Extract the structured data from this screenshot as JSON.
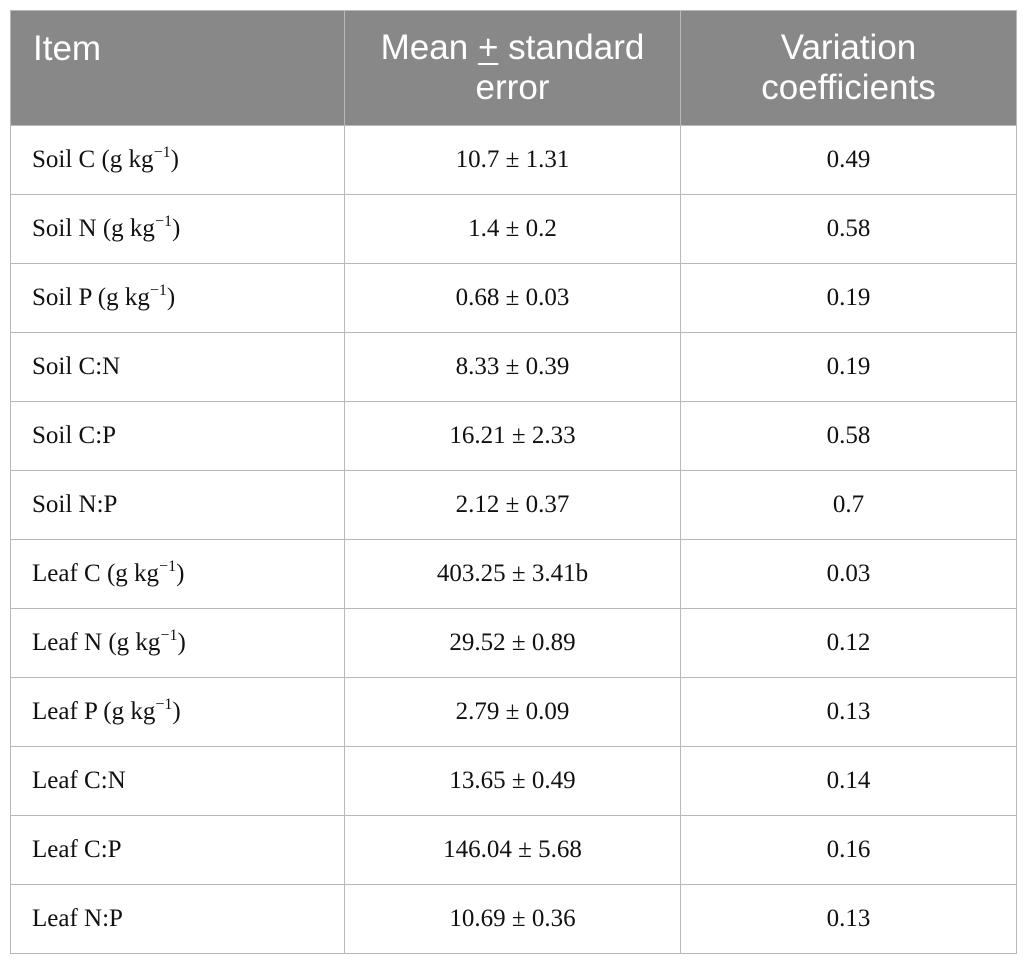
{
  "table": {
    "headers": {
      "item": "Item",
      "mean_line1_prefix": "Mean ",
      "mean_pm": "+",
      "mean_line1_suffix": " standard",
      "mean_line2": "error",
      "var_line1": "Variation",
      "var_line2": "coefficients"
    },
    "rows": [
      {
        "item": "Soil C",
        "unit_open": " (g kg",
        "unit_sup": "−1",
        "unit_close": ")",
        "mean": "10.7 ± 1.31",
        "cv": "0.49"
      },
      {
        "item": "Soil N",
        "unit_open": " (g kg",
        "unit_sup": "−1",
        "unit_close": ")",
        "mean": "1.4 ± 0.2",
        "cv": "0.58"
      },
      {
        "item": "Soil P",
        "unit_open": " (g kg",
        "unit_sup": "−1",
        "unit_close": ")",
        "mean": "0.68 ± 0.03",
        "cv": "0.19"
      },
      {
        "item": "Soil C:N",
        "unit_open": "",
        "unit_sup": "",
        "unit_close": "",
        "mean": "8.33 ± 0.39",
        "cv": "0.19"
      },
      {
        "item": "Soil C:P",
        "unit_open": "",
        "unit_sup": "",
        "unit_close": "",
        "mean": "16.21 ± 2.33",
        "cv": "0.58"
      },
      {
        "item": "Soil N:P",
        "unit_open": "",
        "unit_sup": "",
        "unit_close": "",
        "mean": "2.12 ± 0.37",
        "cv": "0.7"
      },
      {
        "item": "Leaf C",
        "unit_open": " (g kg",
        "unit_sup": "−1",
        "unit_close": ")",
        "mean": "403.25 ± 3.41b",
        "cv": "0.03"
      },
      {
        "item": "Leaf N",
        "unit_open": " (g kg",
        "unit_sup": "−1",
        "unit_close": ")",
        "mean": "29.52 ± 0.89",
        "cv": "0.12"
      },
      {
        "item": "Leaf P",
        "unit_open": " (g kg",
        "unit_sup": "−1",
        "unit_close": ")",
        "mean": "2.79 ± 0.09",
        "cv": "0.13"
      },
      {
        "item": "Leaf C:N",
        "unit_open": "",
        "unit_sup": "",
        "unit_close": "",
        "mean": "13.65 ± 0.49",
        "cv": "0.14"
      },
      {
        "item": "Leaf C:P",
        "unit_open": "",
        "unit_sup": "",
        "unit_close": "",
        "mean": "146.04 ± 5.68",
        "cv": "0.16"
      },
      {
        "item": "Leaf N:P",
        "unit_open": "",
        "unit_sup": "",
        "unit_close": "",
        "mean": "10.69 ± 0.36",
        "cv": "0.13"
      }
    ]
  }
}
